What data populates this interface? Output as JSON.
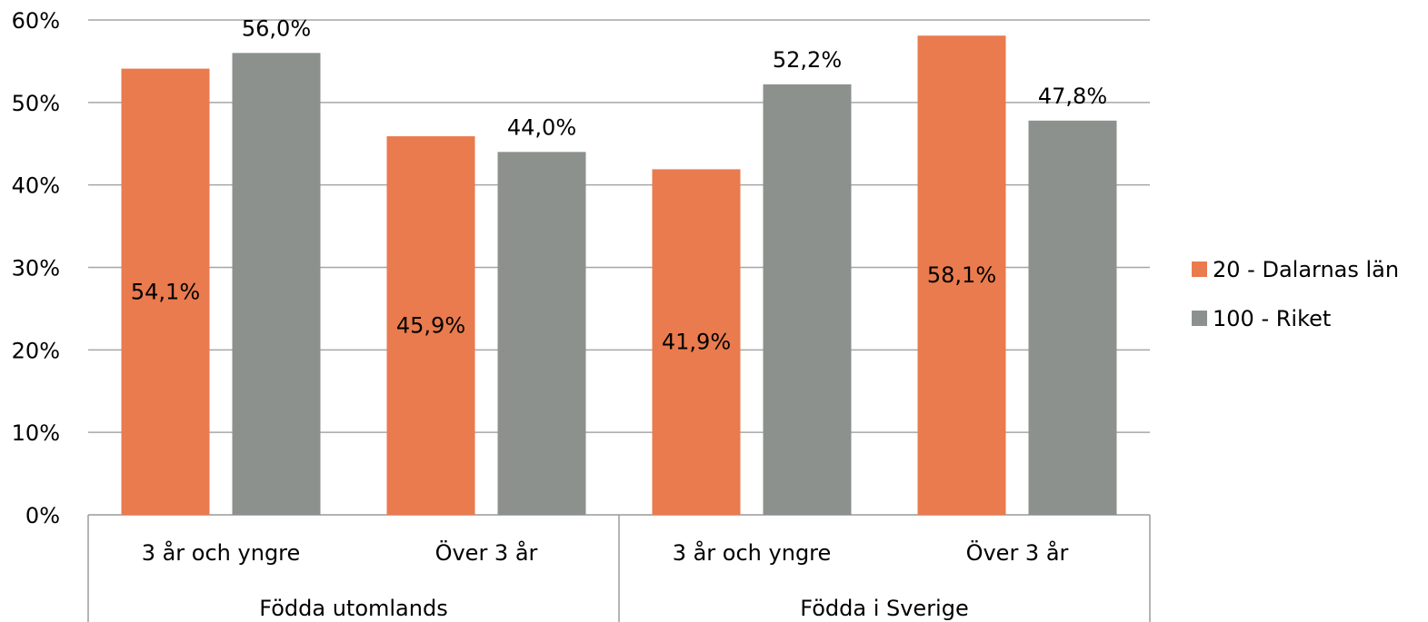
{
  "chart_data": {
    "type": "bar",
    "title": "",
    "xlabel": "",
    "ylabel": "",
    "ylim": [
      0,
      60
    ],
    "yticks": [
      "0%",
      "10%",
      "20%",
      "30%",
      "40%",
      "50%",
      "60%"
    ],
    "grid": true,
    "legend_position": "right",
    "groups": [
      {
        "label": "Födda utomlands",
        "categories": [
          "3 år och yngre",
          "Över 3 år"
        ]
      },
      {
        "label": "Födda i Sverige",
        "categories": [
          "3 år och yngre",
          "Över 3 år"
        ]
      }
    ],
    "categories": [
      "3 år och yngre",
      "Över 3 år",
      "3 år och yngre",
      "Över 3 år"
    ],
    "series": [
      {
        "name": "20 - Dalarnas län",
        "color": "#E97B4E",
        "values": [
          54.1,
          45.9,
          41.9,
          58.1
        ],
        "labels": [
          "54,1%",
          "45,9%",
          "41,9%",
          "58,1%"
        ]
      },
      {
        "name": "100 - Riket",
        "color": "#8C918E",
        "values": [
          56.0,
          44.0,
          52.2,
          47.8
        ],
        "labels": [
          "56,0%",
          "44,0%",
          "52,2%",
          "47,8%"
        ]
      }
    ]
  }
}
